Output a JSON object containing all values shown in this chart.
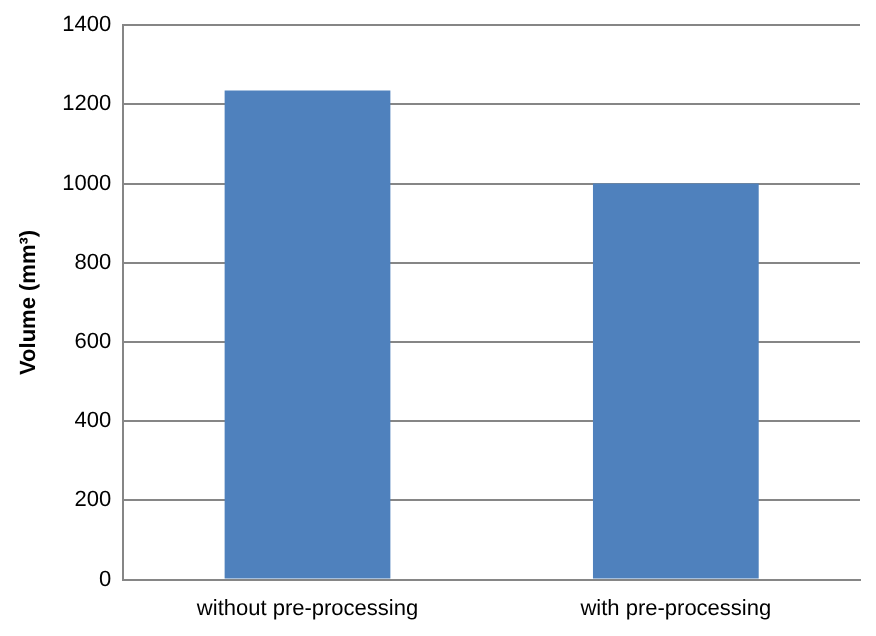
{
  "chart_data": {
    "type": "bar",
    "ylabel": "Volume (mm³)",
    "categories": [
      "without pre-processing",
      "with pre-processing"
    ],
    "values": [
      1235,
      1000
    ],
    "color": "#4f81bd",
    "ylim": [
      0,
      1400
    ],
    "yticks": [
      0,
      200,
      400,
      600,
      800,
      1000,
      1200,
      1400
    ],
    "grid": "y"
  }
}
